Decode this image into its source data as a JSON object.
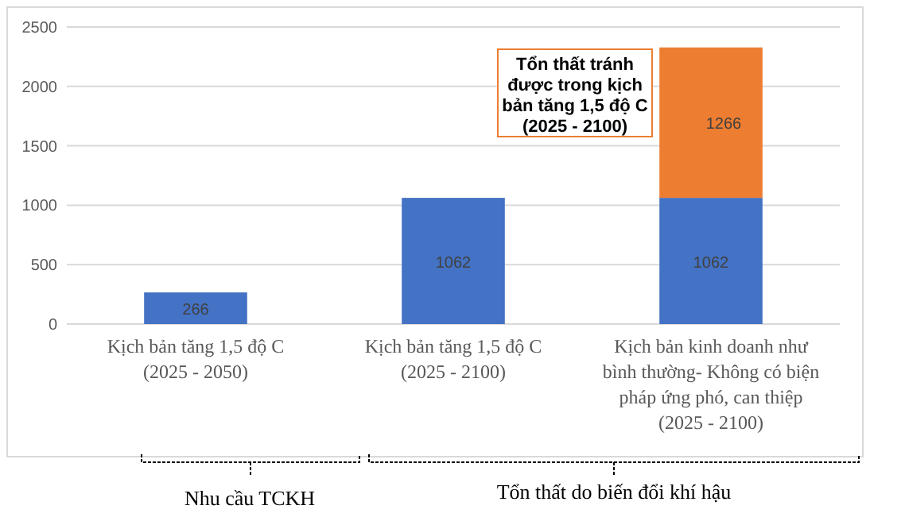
{
  "chart_data": {
    "type": "bar",
    "stacked": true,
    "categories": [
      "Kịch bản tăng 1,5 độ C (2025 - 2050)",
      "Kịch bản tăng 1,5 độ C (2025 - 2100)",
      "Kịch bản kinh doanh như bình thường- Không có biện pháp ứng phó, can thiệp (2025 - 2100)"
    ],
    "series": [
      {
        "color": "#4472c4",
        "values": [
          266,
          1062,
          1062
        ]
      },
      {
        "color": "#ed7d31",
        "values": [
          null,
          null,
          1266
        ]
      }
    ],
    "ylim": [
      0,
      2500
    ],
    "yticks": [
      0,
      500,
      1000,
      1500,
      2000,
      2500
    ],
    "grid": "y",
    "data_labels": true,
    "annotations": [
      "Tổn thất tránh được trong kịch bản tăng 1,5 độ C (2025 - 2100)",
      "Nhu cầu TCKH",
      "Tổn thất do biến đổi khí hậu"
    ]
  }
}
